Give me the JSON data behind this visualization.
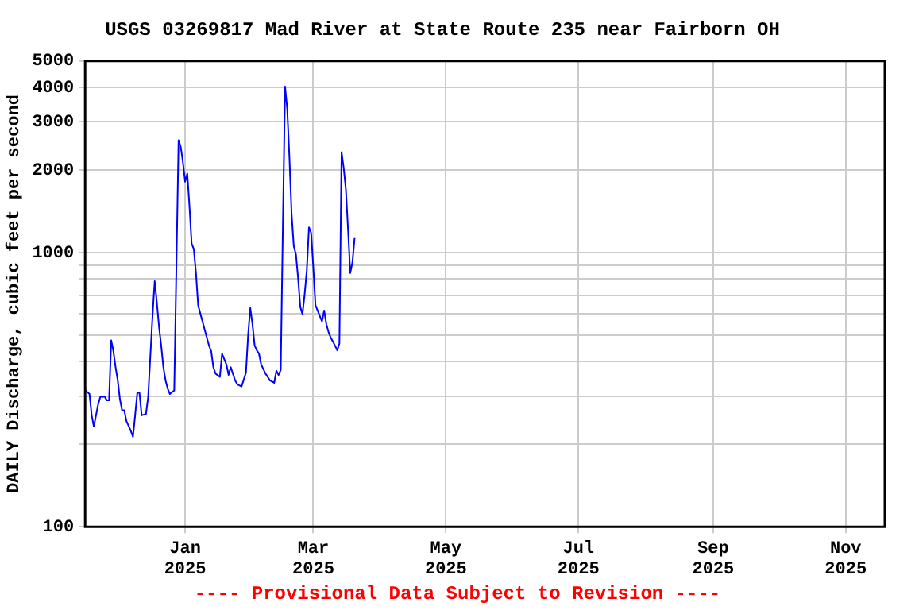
{
  "chart_data": {
    "type": "line",
    "title": "USGS 03269817 Mad River at State Route 235 near Fairborn OH",
    "ylabel": "DAILY Discharge, cubic feet per second",
    "annotations": [
      "---- Provisional Data Subject to Revision ----"
    ],
    "x": [
      "2024-11-16",
      "2024-11-18",
      "2024-11-19",
      "2024-11-20",
      "2024-11-21",
      "2024-11-22",
      "2024-11-23",
      "2024-11-25",
      "2024-11-26",
      "2024-11-27",
      "2024-11-28",
      "2024-11-29",
      "2024-11-30",
      "2024-12-01",
      "2024-12-02",
      "2024-12-03",
      "2024-12-04",
      "2024-12-05",
      "2024-12-07",
      "2024-12-08",
      "2024-12-09",
      "2024-12-10",
      "2024-12-11",
      "2024-12-12",
      "2024-12-14",
      "2024-12-15",
      "2024-12-16",
      "2024-12-17",
      "2024-12-18",
      "2024-12-19",
      "2024-12-20",
      "2024-12-21",
      "2024-12-22",
      "2024-12-23",
      "2024-12-24",
      "2024-12-25",
      "2024-12-26",
      "2024-12-27",
      "2024-12-28",
      "2024-12-29",
      "2024-12-30",
      "2024-12-31",
      "2025-01-01",
      "2025-01-02",
      "2025-01-03",
      "2025-01-04",
      "2025-01-05",
      "2025-01-06",
      "2025-01-07",
      "2025-01-08",
      "2025-01-09",
      "2025-01-10",
      "2025-01-11",
      "2025-01-12",
      "2025-01-13",
      "2025-01-14",
      "2025-01-15",
      "2025-01-17",
      "2025-01-18",
      "2025-01-20",
      "2025-01-21",
      "2025-01-22",
      "2025-01-24",
      "2025-01-25",
      "2025-01-27",
      "2025-01-29",
      "2025-01-30",
      "2025-01-31",
      "2025-02-01",
      "2025-02-02",
      "2025-02-03",
      "2025-02-04",
      "2025-02-05",
      "2025-02-07",
      "2025-02-08",
      "2025-02-09",
      "2025-02-11",
      "2025-02-12",
      "2025-02-13",
      "2025-02-14",
      "2025-02-15",
      "2025-02-16",
      "2025-02-17",
      "2025-02-18",
      "2025-02-19",
      "2025-02-20",
      "2025-02-21",
      "2025-02-22",
      "2025-02-23",
      "2025-02-24",
      "2025-02-25",
      "2025-02-26",
      "2025-02-27",
      "2025-02-28",
      "2025-03-01",
      "2025-03-02",
      "2025-03-03",
      "2025-03-04",
      "2025-03-05",
      "2025-03-06",
      "2025-03-07",
      "2025-03-08",
      "2025-03-09",
      "2025-03-10",
      "2025-03-11",
      "2025-03-12",
      "2025-03-13",
      "2025-03-14",
      "2025-03-15",
      "2025-03-16",
      "2025-03-17",
      "2025-03-18",
      "2025-03-19",
      "2025-03-20"
    ],
    "series": [
      {
        "color": "#0000ff",
        "values": [
          315,
          305,
          255,
          232,
          255,
          280,
          298,
          298,
          289,
          289,
          479,
          437,
          382,
          342,
          292,
          266,
          266,
          243,
          224,
          213,
          255,
          308,
          308,
          255,
          258,
          298,
          419,
          587,
          787,
          657,
          536,
          458,
          382,
          342,
          319,
          305,
          310,
          314,
          901,
          2570,
          2430,
          2130,
          1815,
          1943,
          1480,
          1080,
          1030,
          842,
          642,
          600,
          561,
          524,
          490,
          458,
          437,
          382,
          362,
          352,
          428,
          391,
          358,
          382,
          342,
          331,
          325,
          365,
          501,
          628,
          548,
          458,
          440,
          428,
          391,
          362,
          352,
          342,
          335,
          371,
          358,
          373,
          1264,
          4036,
          3340,
          2225,
          1384,
          1057,
          986,
          805,
          634,
          597,
          703,
          862,
          1237,
          1180,
          881,
          642,
          614,
          587,
          561,
          615,
          548,
          513,
          490,
          474,
          458,
          440,
          466,
          2325,
          2030,
          1696,
          1208,
          842,
          922,
          1130
        ]
      }
    ],
    "xlim": [
      "2024-11-16",
      "2025-11-19"
    ],
    "xticks": [
      {
        "value": "2025-01-01",
        "label": "Jan 2025"
      },
      {
        "value": "2025-03-01",
        "label": "Mar 2025"
      },
      {
        "value": "2025-05-01",
        "label": "May 2025"
      },
      {
        "value": "2025-07-01",
        "label": "Jul 2025"
      },
      {
        "value": "2025-09-01",
        "label": "Sep 2025"
      },
      {
        "value": "2025-11-01",
        "label": "Nov 2025"
      }
    ],
    "ylim": [
      100,
      5000
    ],
    "yticks": [
      100,
      {
        "value": 200,
        "label": null
      },
      {
        "value": 300,
        "label": null
      },
      {
        "value": 400,
        "label": null
      },
      {
        "value": 500,
        "label": null
      },
      {
        "value": 600,
        "label": null
      },
      {
        "value": 700,
        "label": null
      },
      {
        "value": 800,
        "label": null
      },
      {
        "value": 900,
        "label": null
      },
      1000,
      2000,
      3000,
      4000,
      5000
    ],
    "log": "y",
    "grid": true,
    "legend": false,
    "marker": "none",
    "line_style": "solid"
  }
}
